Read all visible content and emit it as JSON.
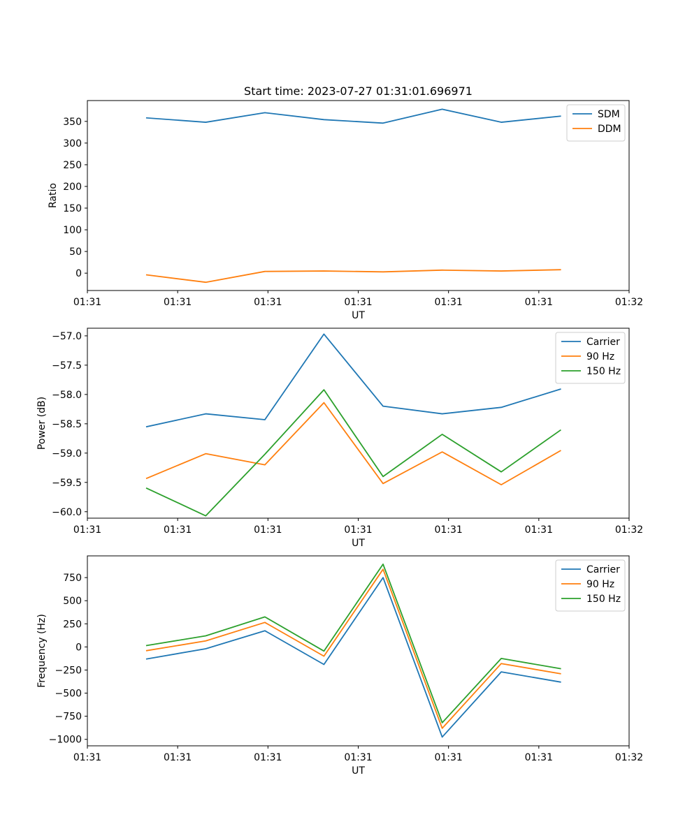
{
  "figure": {
    "title": "Start time: 2023-07-27 01:31:01.696971"
  },
  "colors": {
    "series_1": "#1f77b4",
    "series_2": "#ff7f0e",
    "series_3": "#2ca02c",
    "axes": "#000000",
    "legend_border": "#cccccc"
  },
  "chart_data": [
    {
      "type": "line",
      "id": "ratio",
      "title": "Start time: 2023-07-27 01:31:01.696971",
      "xlabel": "UT",
      "ylabel": "Ratio",
      "legend_position": "top-right",
      "x": [
        0.657,
        1.311,
        1.966,
        2.62,
        3.275,
        3.93,
        4.584,
        5.239
      ],
      "xlim": [
        0.0,
        6.0
      ],
      "xticks": [
        0,
        1,
        2,
        3,
        4,
        5,
        6
      ],
      "xtick_labels": [
        "01:31",
        "01:31",
        "01:31",
        "01:31",
        "01:31",
        "01:31",
        "01:32"
      ],
      "ylim": [
        -40,
        398
      ],
      "yticks": [
        0,
        50,
        100,
        150,
        200,
        250,
        300,
        350
      ],
      "ytick_labels": [
        "0",
        "50",
        "100",
        "150",
        "200",
        "250",
        "300",
        "350"
      ],
      "series": [
        {
          "name": "SDM",
          "values": [
            358,
            348,
            370,
            354,
            346,
            378,
            348,
            362
          ]
        },
        {
          "name": "DDM",
          "values": [
            -4,
            -21,
            4,
            5,
            3,
            7,
            5,
            8
          ]
        }
      ]
    },
    {
      "type": "line",
      "id": "power",
      "title": "",
      "xlabel": "UT",
      "ylabel": "Power (dB)",
      "legend_position": "top-right",
      "x": [
        0.657,
        1.311,
        1.966,
        2.62,
        3.275,
        3.93,
        4.584,
        5.239
      ],
      "xlim": [
        0.0,
        6.0
      ],
      "xticks": [
        0,
        1,
        2,
        3,
        4,
        5,
        6
      ],
      "xtick_labels": [
        "01:31",
        "01:31",
        "01:31",
        "01:31",
        "01:31",
        "01:31",
        "01:32"
      ],
      "ylim": [
        -60.11,
        -56.87
      ],
      "yticks": [
        -57.0,
        -57.5,
        -58.0,
        -58.5,
        -59.0,
        -59.5,
        -60.0
      ],
      "ytick_labels": [
        "−57.0",
        "−57.5",
        "−58.0",
        "−58.5",
        "−59.0",
        "−59.5",
        "−60.0"
      ],
      "series": [
        {
          "name": "Carrier",
          "values": [
            -58.55,
            -58.33,
            -58.43,
            -56.97,
            -58.2,
            -58.33,
            -58.22,
            -57.91
          ]
        },
        {
          "name": "90 Hz",
          "values": [
            -59.43,
            -59.01,
            -59.2,
            -58.14,
            -59.52,
            -58.98,
            -59.54,
            -58.96
          ]
        },
        {
          "name": "150 Hz",
          "values": [
            -59.6,
            -60.07,
            -59.02,
            -57.92,
            -59.4,
            -58.68,
            -59.32,
            -58.61
          ]
        }
      ]
    },
    {
      "type": "line",
      "id": "frequency",
      "title": "",
      "xlabel": "UT",
      "ylabel": "Frequency (Hz)",
      "legend_position": "top-right",
      "x": [
        0.657,
        1.311,
        1.966,
        2.62,
        3.275,
        3.93,
        4.584,
        5.239
      ],
      "xlim": [
        0.0,
        6.0
      ],
      "xticks": [
        0,
        1,
        2,
        3,
        4,
        5,
        6
      ],
      "xtick_labels": [
        "01:31",
        "01:31",
        "01:31",
        "01:31",
        "01:31",
        "01:31",
        "01:32"
      ],
      "ylim": [
        -1070,
        985
      ],
      "yticks": [
        750,
        500,
        250,
        0,
        -250,
        -500,
        -750,
        -1000
      ],
      "ytick_labels": [
        "750",
        "500",
        "250",
        "0",
        "−250",
        "−500",
        "−750",
        "−1000"
      ],
      "series": [
        {
          "name": "Carrier",
          "values": [
            -130,
            -20,
            175,
            -190,
            750,
            -975,
            -270,
            -380
          ]
        },
        {
          "name": "90 Hz",
          "values": [
            -40,
            65,
            265,
            -100,
            840,
            -880,
            -180,
            -290
          ]
        },
        {
          "name": "150 Hz",
          "values": [
            15,
            120,
            325,
            -45,
            895,
            -820,
            -125,
            -235
          ]
        }
      ]
    }
  ]
}
